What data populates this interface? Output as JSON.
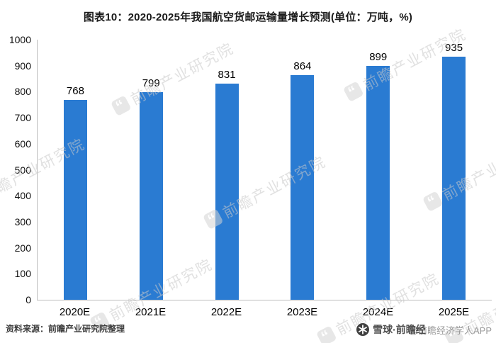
{
  "title": "图表10：2020-2025年我国航空货邮运输量增长预测(单位：万吨，%)",
  "chart_data": {
    "type": "bar",
    "title": "图表10：2020-2025年我国航空货邮运输量增长预测(单位：万吨，%)",
    "categories": [
      "2020E",
      "2021E",
      "2022E",
      "2023E",
      "2024E",
      "2025E"
    ],
    "values": [
      768,
      799,
      831,
      864,
      899,
      935
    ],
    "xlabel": "",
    "ylabel": "",
    "ylim": [
      0,
      1000
    ],
    "yticks": [
      0,
      100,
      200,
      300,
      400,
      500,
      600,
      700,
      800,
      900,
      1000
    ],
    "grid": "off",
    "legend": "none",
    "bar_color": "#2a7bd2"
  },
  "watermark": {
    "text": "前瞻产业研究院",
    "icon": "quote-logo-icon"
  },
  "source_note": "资料来源：前瞻产业研究院整理",
  "branding": {
    "icon": "snowflake-icon",
    "app_label": "雪球·前瞻经",
    "overlay_label": "@前瞻经济学人APP"
  },
  "colors": {
    "bar": "#2a7bd2",
    "axis": "#bdbdbd",
    "title_text": "#1a1a1a",
    "watermark": "#c9c9c9"
  }
}
